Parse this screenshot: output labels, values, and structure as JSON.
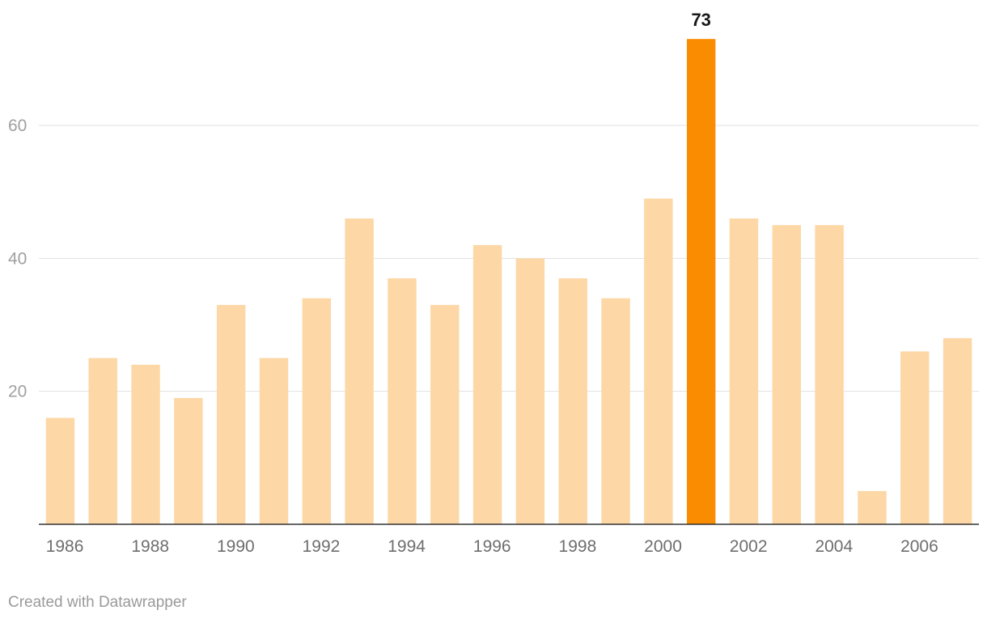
{
  "chart_data": {
    "type": "bar",
    "categories": [
      "1986",
      "1987",
      "1988",
      "1989",
      "1990",
      "1991",
      "1992",
      "1993",
      "1994",
      "1995",
      "1996",
      "1997",
      "1998",
      "1999",
      "2000",
      "2001",
      "2002",
      "2003",
      "2004",
      "2005",
      "2006",
      "2007"
    ],
    "values": [
      16,
      25,
      24,
      19,
      33,
      25,
      34,
      46,
      37,
      33,
      42,
      40,
      37,
      34,
      49,
      73,
      46,
      45,
      45,
      5,
      26,
      28
    ],
    "x_tick_labels": [
      "1986",
      "1988",
      "1990",
      "1992",
      "1994",
      "1996",
      "1998",
      "2000",
      "2002",
      "2004",
      "2006"
    ],
    "y_ticks": [
      20,
      40,
      60
    ],
    "ylim": [
      0,
      73
    ],
    "grid": true,
    "highlight": {
      "category": "2001",
      "label": "73"
    },
    "colors": {
      "bar": "#fdd7a5",
      "highlight": "#f98c00",
      "grid": "#e1e1e1",
      "axis": "#333333"
    }
  },
  "footer": {
    "credit": "Created with Datawrapper"
  }
}
